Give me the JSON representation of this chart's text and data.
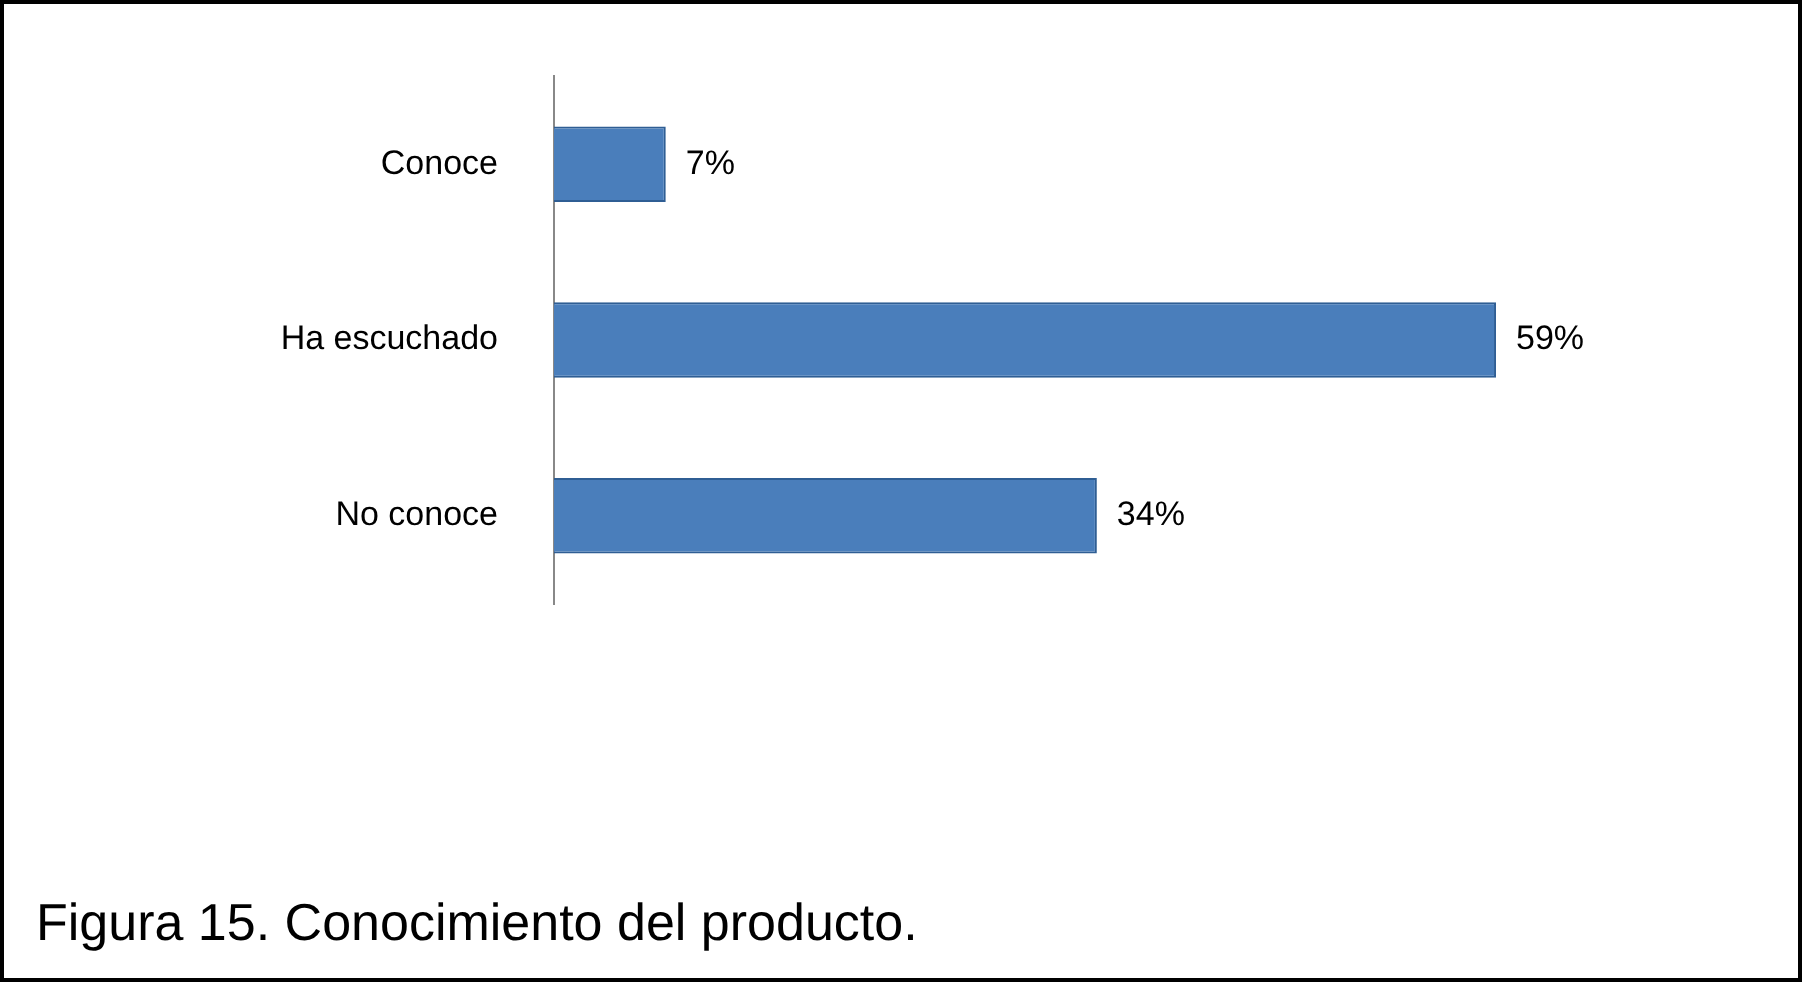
{
  "chart_data": {
    "type": "bar",
    "orientation": "horizontal",
    "categories": [
      "Conoce",
      "Ha escuchado",
      "No conoce"
    ],
    "values": [
      7,
      59,
      34
    ],
    "value_labels": [
      "7%",
      "59%",
      "34%"
    ],
    "color": "#4a7ebb",
    "annotations": [
      "Figura 15. Conocimiento del producto."
    ]
  }
}
